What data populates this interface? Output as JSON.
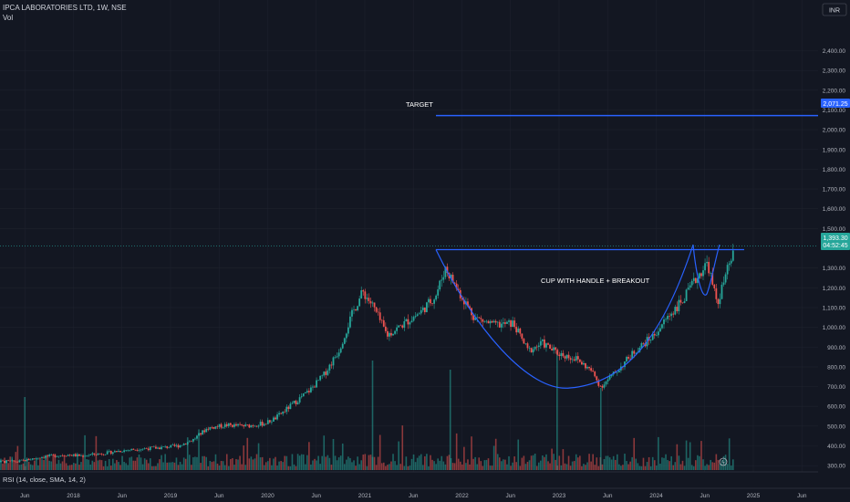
{
  "header": {
    "symbol_line": "IPCA LABORATORIES LTD, 1W, NSE",
    "volume_label": "Vol",
    "currency_button": "INR"
  },
  "annotations": {
    "target_label": "TARGET",
    "pattern_label": "CUP WITH HANDLE + BREAKOUT"
  },
  "price_markers": {
    "target_price": "2,071.25",
    "last_price": "1,393.30",
    "countdown": "04:52:45"
  },
  "indicator": {
    "rsi_label": "RSI (14, close, SMA, 14, 2)"
  },
  "colors": {
    "background": "#131722",
    "up": "#26a69a",
    "down": "#ef5350",
    "annotation_line": "#2962ff",
    "last_price": "#26a69a"
  },
  "chart_data": {
    "type": "candlestick",
    "ylim": [
      250,
      2550
    ],
    "y_ticks": [
      "2,400.00",
      "2,300.00",
      "2,200.00",
      "2,100.00",
      "2,000.00",
      "1,900.00",
      "1,800.00",
      "1,700.00",
      "1,600.00",
      "1,500.00",
      "1,300.00",
      "1,200.00",
      "1,100.00",
      "1,000.00",
      "900.00",
      "800.00",
      "700.00",
      "600.00",
      "500.00",
      "400.00",
      "300.00"
    ],
    "x_ticks": [
      "Jun",
      "2018",
      "Jun",
      "2019",
      "Jun",
      "2020",
      "Jun",
      "2021",
      "Jun",
      "2022",
      "Jun",
      "2023",
      "Jun",
      "2024",
      "Jun",
      "2025",
      "Jun"
    ],
    "price_path": [
      [
        2017.35,
        320
      ],
      [
        2017.6,
        345
      ],
      [
        2017.85,
        355
      ],
      [
        2018.0,
        350
      ],
      [
        2018.2,
        360
      ],
      [
        2018.4,
        375
      ],
      [
        2018.6,
        385
      ],
      [
        2018.8,
        390
      ],
      [
        2019.0,
        400
      ],
      [
        2019.15,
        430
      ],
      [
        2019.3,
        490
      ],
      [
        2019.5,
        505
      ],
      [
        2019.7,
        500
      ],
      [
        2019.9,
        515
      ],
      [
        2020.0,
        540
      ],
      [
        2020.15,
        600
      ],
      [
        2020.35,
        680
      ],
      [
        2020.5,
        760
      ],
      [
        2020.65,
        880
      ],
      [
        2020.8,
        1080
      ],
      [
        2020.9,
        1180
      ],
      [
        2021.0,
        1110
      ],
      [
        2021.15,
        960
      ],
      [
        2021.3,
        1010
      ],
      [
        2021.5,
        1080
      ],
      [
        2021.65,
        1160
      ],
      [
        2021.75,
        1300
      ],
      [
        2021.9,
        1170
      ],
      [
        2022.05,
        1050
      ],
      [
        2022.25,
        1010
      ],
      [
        2022.45,
        1020
      ],
      [
        2022.6,
        880
      ],
      [
        2022.75,
        920
      ],
      [
        2022.9,
        870
      ],
      [
        2023.1,
        840
      ],
      [
        2023.25,
        780
      ],
      [
        2023.35,
        700
      ],
      [
        2023.5,
        770
      ],
      [
        2023.7,
        880
      ],
      [
        2023.9,
        960
      ],
      [
        2024.05,
        1060
      ],
      [
        2024.2,
        1140
      ],
      [
        2024.35,
        1260
      ],
      [
        2024.45,
        1330
      ],
      [
        2024.5,
        1210
      ],
      [
        2024.55,
        1120
      ],
      [
        2024.63,
        1250
      ],
      [
        2024.72,
        1393
      ]
    ],
    "target_level": 2071.25,
    "resistance_level": 1393
  }
}
